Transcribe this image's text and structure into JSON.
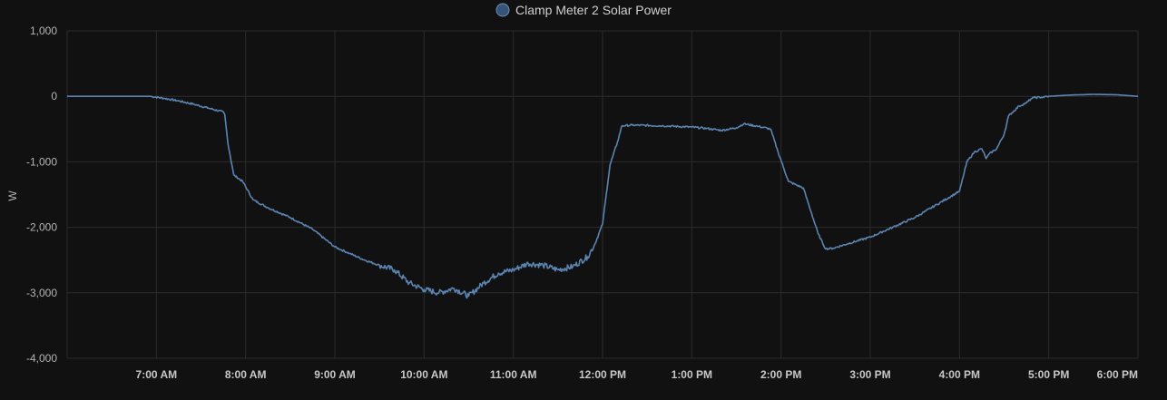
{
  "chart_data": {
    "type": "line",
    "legend": {
      "placement": "top-center"
    },
    "grid": true,
    "xlabel": "",
    "ylabel": "W",
    "ylim": [
      -4000,
      1000
    ],
    "yticks": [
      1000,
      0,
      -1000,
      -2000,
      -3000,
      -4000
    ],
    "ytick_labels": [
      "1,000",
      "0",
      "-1,000",
      "-2,000",
      "-3,000",
      "-4,000"
    ],
    "xlim": [
      "6:00 AM",
      "6:00 PM"
    ],
    "xticks": [
      "7:00 AM",
      "8:00 AM",
      "9:00 AM",
      "10:00 AM",
      "11:00 AM",
      "12:00 PM",
      "1:00 PM",
      "2:00 PM",
      "3:00 PM",
      "4:00 PM",
      "5:00 PM",
      "6:00 PM"
    ],
    "colors": {
      "series": "#5b84b1",
      "background": "#111111",
      "grid": "#2c2c2c"
    },
    "series": [
      {
        "name": "Clamp Meter 2 Solar Power",
        "color": "#5b84b1",
        "x": [
          "6:00 AM",
          "6:56 AM",
          "7:05 AM",
          "7:15 AM",
          "7:25 AM",
          "7:35 AM",
          "7:45 AM",
          "7:46 AM",
          "7:48 AM",
          "7:52 AM",
          "7:58 AM",
          "8:05 AM",
          "8:15 AM",
          "8:30 AM",
          "8:45 AM",
          "9:00 AM",
          "9:10 AM",
          "9:20 AM",
          "9:30 AM",
          "9:40 AM",
          "9:50 AM",
          "10:00 AM",
          "10:10 AM",
          "10:20 AM",
          "10:30 AM",
          "10:40 AM",
          "10:50 AM",
          "11:00 AM",
          "11:10 AM",
          "11:20 AM",
          "11:30 AM",
          "11:40 AM",
          "11:50 AM",
          "11:55 AM",
          "12:00 PM",
          "12:05 PM",
          "12:10 PM",
          "12:13 PM",
          "12:20 PM",
          "12:40 PM",
          "1:00 PM",
          "1:10 PM",
          "1:20 PM",
          "1:30 PM",
          "1:35 PM",
          "1:45 PM",
          "1:53 PM",
          "1:58 PM",
          "2:05 PM",
          "2:15 PM",
          "2:20 PM",
          "2:25 PM",
          "2:30 PM",
          "2:35 PM",
          "2:45 PM",
          "3:00 PM",
          "3:15 PM",
          "3:30 PM",
          "3:45 PM",
          "4:00 PM",
          "4:05 PM",
          "4:10 PM",
          "4:15 PM",
          "4:18 PM",
          "4:20 PM",
          "4:25 PM",
          "4:30 PM",
          "4:33 PM",
          "4:40 PM",
          "4:45 PM",
          "4:48 PM",
          "4:50 PM",
          "4:55 PM",
          "5:00 PM",
          "5:15 PM",
          "5:30 PM",
          "5:45 PM",
          "6:00 PM"
        ],
        "y": [
          0,
          0,
          -30,
          -70,
          -120,
          -180,
          -240,
          -280,
          -700,
          -1200,
          -1300,
          -1580,
          -1700,
          -1850,
          -2030,
          -2300,
          -2400,
          -2500,
          -2580,
          -2650,
          -2850,
          -2950,
          -3000,
          -2930,
          -3050,
          -2850,
          -2700,
          -2650,
          -2550,
          -2580,
          -2650,
          -2600,
          -2450,
          -2250,
          -1950,
          -1050,
          -700,
          -450,
          -440,
          -450,
          -470,
          -490,
          -520,
          -480,
          -420,
          -460,
          -500,
          -850,
          -1300,
          -1400,
          -1750,
          -2100,
          -2330,
          -2320,
          -2250,
          -2150,
          -2000,
          -1850,
          -1650,
          -1450,
          -1000,
          -850,
          -800,
          -950,
          -880,
          -800,
          -580,
          -300,
          -150,
          -100,
          -40,
          -20,
          -15,
          0,
          20,
          30,
          25,
          0
        ]
      }
    ]
  }
}
